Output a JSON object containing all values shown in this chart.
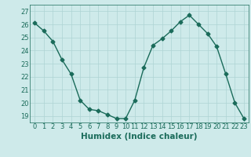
{
  "x": [
    0,
    1,
    2,
    3,
    4,
    5,
    6,
    7,
    8,
    9,
    10,
    11,
    12,
    13,
    14,
    15,
    16,
    17,
    18,
    19,
    20,
    21,
    22,
    23
  ],
  "y": [
    26.1,
    25.5,
    24.7,
    23.3,
    22.2,
    20.2,
    19.5,
    19.4,
    19.1,
    18.8,
    18.8,
    20.2,
    22.7,
    24.4,
    24.9,
    25.5,
    26.2,
    26.7,
    26.0,
    25.3,
    24.3,
    22.2,
    20.0,
    18.8
  ],
  "xlabel": "Humidex (Indice chaleur)",
  "xlim": [
    -0.5,
    23.5
  ],
  "ylim": [
    18.5,
    27.5
  ],
  "yticks": [
    19,
    20,
    21,
    22,
    23,
    24,
    25,
    26,
    27
  ],
  "xticks": [
    0,
    1,
    2,
    3,
    4,
    5,
    6,
    7,
    8,
    9,
    10,
    11,
    12,
    13,
    14,
    15,
    16,
    17,
    18,
    19,
    20,
    21,
    22,
    23
  ],
  "line_color": "#1a6b5a",
  "marker": "D",
  "marker_size": 2.5,
  "bg_color": "#ceeaea",
  "grid_color": "#aed4d4",
  "tick_label_fontsize": 6,
  "xlabel_fontsize": 7.5,
  "line_width": 1.0
}
